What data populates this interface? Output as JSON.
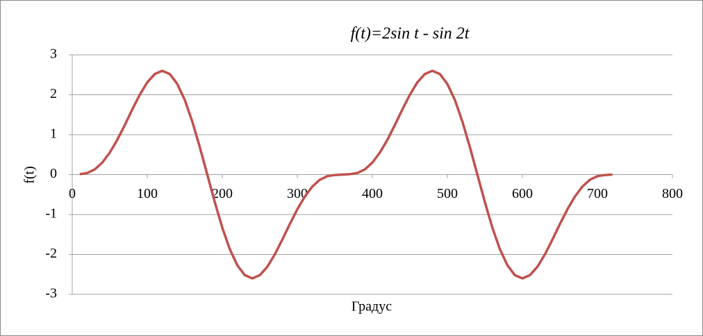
{
  "chart_data": {
    "type": "line",
    "title": "f(t)=2sin t - sin 2t",
    "x_label": "Градус",
    "y_label": "f(t)",
    "x": [
      10,
      20,
      30,
      40,
      50,
      60,
      70,
      80,
      90,
      100,
      110,
      120,
      130,
      140,
      150,
      160,
      170,
      180,
      190,
      200,
      210,
      220,
      230,
      240,
      250,
      260,
      270,
      280,
      290,
      300,
      310,
      320,
      330,
      340,
      350,
      360,
      370,
      380,
      390,
      400,
      410,
      420,
      430,
      440,
      450,
      460,
      470,
      480,
      490,
      500,
      510,
      520,
      530,
      540,
      550,
      560,
      570,
      580,
      590,
      600,
      610,
      620,
      630,
      640,
      650,
      660,
      670,
      680,
      690,
      700,
      710,
      720
    ],
    "series": [
      {
        "name": "f(t)",
        "color": "#c0504d",
        "values": [
          0.01,
          0.04,
          0.13,
          0.3,
          0.55,
          0.87,
          1.24,
          1.63,
          2,
          2.31,
          2.52,
          2.6,
          2.52,
          2.27,
          1.87,
          1.33,
          0.69,
          0,
          -0.69,
          -1.33,
          -1.87,
          -2.27,
          -2.52,
          -2.6,
          -2.52,
          -2.31,
          -2,
          -1.63,
          -1.24,
          -0.87,
          -0.55,
          -0.3,
          -0.13,
          -0.04,
          -0.01,
          0,
          0.01,
          0.04,
          0.13,
          0.3,
          0.55,
          0.87,
          1.24,
          1.63,
          2,
          2.31,
          2.52,
          2.6,
          2.52,
          2.27,
          1.87,
          1.33,
          0.69,
          0,
          -0.69,
          -1.33,
          -1.87,
          -2.27,
          -2.52,
          -2.6,
          -2.52,
          -2.31,
          -2,
          -1.63,
          -1.24,
          -0.87,
          -0.55,
          -0.3,
          -0.13,
          -0.04,
          -0.01,
          0
        ]
      }
    ],
    "xlim": [
      0,
      800
    ],
    "xticks": [
      0,
      100,
      200,
      300,
      400,
      500,
      600,
      700,
      800
    ],
    "ylim": [
      -3,
      3
    ],
    "yticks": [
      -3,
      -2,
      -1,
      0,
      1,
      2,
      3
    ],
    "grid": true
  }
}
